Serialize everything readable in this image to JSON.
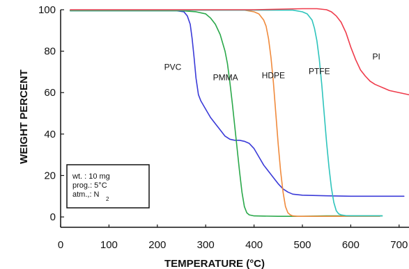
{
  "chart_data": {
    "type": "line",
    "title": "",
    "xlabel": "TEMPERATURE (°C)",
    "ylabel": "WEIGHT PERCENT",
    "xlim": [
      0,
      750
    ],
    "ylim": [
      -5,
      100
    ],
    "xticks": [
      0,
      100,
      200,
      300,
      400,
      500,
      600,
      700
    ],
    "yticks": [
      0,
      20,
      40,
      60,
      80,
      100
    ],
    "grid": false,
    "series": [
      {
        "name": "PVC",
        "color": "#3a3ad8",
        "x": [
          20,
          240,
          255,
          262,
          268,
          272,
          276,
          280,
          285,
          290,
          300,
          310,
          320,
          330,
          340,
          350,
          360,
          370,
          380,
          390,
          400,
          410,
          420,
          430,
          440,
          450,
          460,
          470,
          480,
          500,
          550,
          600,
          650,
          710
        ],
        "y": [
          99.5,
          99.5,
          99,
          97,
          93,
          86,
          77,
          67,
          59,
          56,
          52,
          48,
          45,
          42,
          39,
          37.5,
          37,
          37,
          36.5,
          35.5,
          33,
          29,
          25,
          22,
          19,
          16,
          13.5,
          12,
          11,
          10.5,
          10.2,
          10,
          10,
          10
        ]
      },
      {
        "name": "PMMA",
        "color": "#2aa84a",
        "x": [
          20,
          250,
          280,
          300,
          310,
          320,
          330,
          340,
          345,
          350,
          355,
          360,
          365,
          370,
          375,
          380,
          385,
          390,
          400,
          450,
          500,
          550,
          600,
          665
        ],
        "y": [
          99.5,
          99.5,
          99,
          98,
          96,
          93,
          88,
          80,
          74,
          65,
          55,
          44,
          33,
          22,
          12,
          5,
          2,
          1,
          0.5,
          0.3,
          0.3,
          0.5,
          0.5,
          0.5
        ]
      },
      {
        "name": "HDPE",
        "color": "#f08a3c",
        "x": [
          20,
          380,
          400,
          410,
          420,
          425,
          430,
          435,
          440,
          445,
          450,
          455,
          460,
          465,
          470,
          475,
          480,
          490,
          500,
          550,
          600,
          660
        ],
        "y": [
          99.8,
          99.8,
          99,
          98,
          95,
          92,
          86,
          77,
          65,
          50,
          35,
          22,
          12,
          5,
          2,
          1,
          0.5,
          0.3,
          0.3,
          0.3,
          0.3,
          0.3
        ]
      },
      {
        "name": "PTFE",
        "color": "#2ec4bc",
        "x": [
          20,
          480,
          500,
          510,
          520,
          525,
          530,
          535,
          540,
          545,
          550,
          555,
          560,
          565,
          570,
          575,
          580,
          590,
          600,
          620,
          665
        ],
        "y": [
          99.8,
          99.8,
          99,
          98,
          95,
          91,
          85,
          76,
          64,
          50,
          36,
          24,
          14,
          7,
          3,
          1.5,
          1,
          0.6,
          0.5,
          0.5,
          0.5
        ]
      },
      {
        "name": "PI",
        "color": "#ef3b4b",
        "x": [
          20,
          400,
          500,
          530,
          550,
          560,
          570,
          580,
          590,
          600,
          610,
          620,
          630,
          640,
          650,
          660,
          670,
          680,
          690,
          700,
          710,
          720,
          730,
          740,
          750
        ],
        "y": [
          100,
          100,
          100.5,
          100.5,
          100,
          99,
          97,
          94,
          89,
          82,
          76,
          71,
          68,
          65.5,
          64,
          63,
          62,
          61,
          60.5,
          60,
          59.5,
          59,
          58.5,
          58,
          57.5
        ]
      }
    ],
    "series_labels": [
      {
        "name": "PVC",
        "x": 232,
        "y": 71
      },
      {
        "name": "PMMA",
        "x": 341,
        "y": 66
      },
      {
        "name": "HDPE",
        "x": 440,
        "y": 67
      },
      {
        "name": "PTFE",
        "x": 535,
        "y": 69
      },
      {
        "name": "PI",
        "x": 653,
        "y": 76
      }
    ],
    "annotation_box": {
      "line1": "wt.    : 10 mg",
      "line2": "prog.: 5°C",
      "line3": "atm.,: N",
      "line3_sub": "2"
    }
  }
}
